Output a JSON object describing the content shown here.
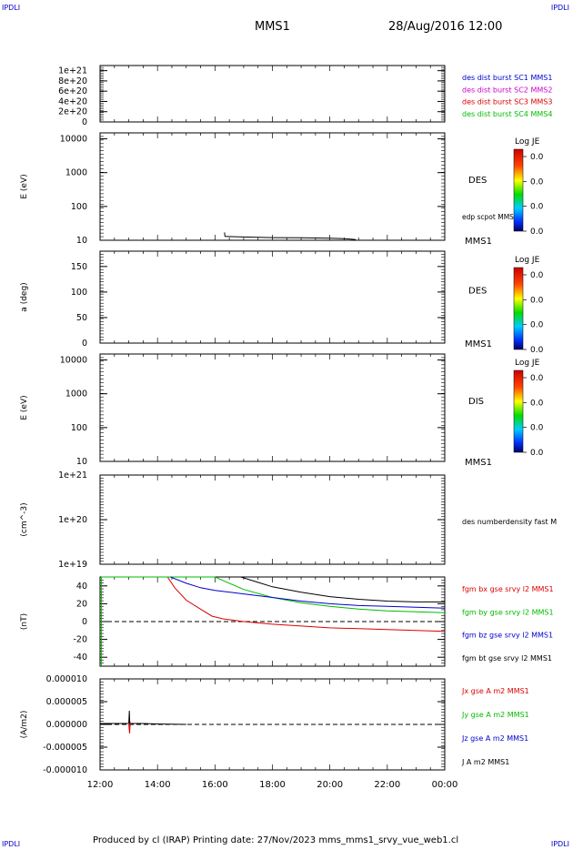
{
  "corner_label": "IPDLI",
  "header": {
    "spacecraft": "MMS1",
    "datetime": "28/Aug/2016 12:00"
  },
  "footer": {
    "text": "Produced by cl (IRAP)   Printing date: 27/Nov/2023   mms_mms1_srvy_vue_web1.cl"
  },
  "colors": {
    "blue": "#0000cc",
    "magenta": "#cc00cc",
    "red": "#dd0000",
    "green": "#00bb00",
    "black": "#000000"
  },
  "chart_data": [
    {
      "type": "line",
      "title": "",
      "ylabel": "",
      "yticks": [
        "1e+21",
        "8e+20",
        "6e+20",
        "4e+20",
        "2e+20",
        "0"
      ],
      "ylim": [
        0,
        1.1e+21
      ],
      "reference_line": 0,
      "legend": [
        {
          "label": "des dist burst SC1 MMS1",
          "color": "#0000cc"
        },
        {
          "label": "des dist burst SC2 MMS2",
          "color": "#cc00cc"
        },
        {
          "label": "des dist burst SC3 MMS3",
          "color": "#dd0000"
        },
        {
          "label": "des dist burst SC4 MMS4",
          "color": "#00bb00"
        }
      ],
      "series": []
    },
    {
      "type": "line",
      "ylabel": "E (eV)",
      "yscale": "log",
      "yticks": [
        "10000",
        "1000",
        "100",
        "10"
      ],
      "ylim": [
        10,
        15000
      ],
      "instrument": "DES",
      "probe": "MMS1",
      "colorbar": {
        "title": "Log JE",
        "ticks": [
          "0.0",
          "0.0",
          "0.0",
          "0.0"
        ]
      },
      "series": [
        {
          "name": "edp scpot MMS1",
          "x": [
            16.33,
            16.35,
            17.0,
            18.0,
            19.0,
            20.0,
            20.5,
            20.9
          ],
          "y": [
            17,
            13,
            12.5,
            12,
            11.8,
            11.5,
            11.2,
            10.5
          ]
        }
      ]
    },
    {
      "type": "heatmap",
      "ylabel": "a (deg)",
      "yticks": [
        "150",
        "100",
        "50",
        "0"
      ],
      "ylim": [
        0,
        180
      ],
      "instrument": "DES",
      "probe": "MMS1",
      "colorbar": {
        "title": "Log JE",
        "ticks": [
          "0.0",
          "0.0",
          "0.0",
          "0.0"
        ]
      }
    },
    {
      "type": "heatmap",
      "ylabel": "E (eV)",
      "yscale": "log",
      "yticks": [
        "10000",
        "1000",
        "100",
        "10"
      ],
      "ylim": [
        10,
        15000
      ],
      "instrument": "DIS",
      "probe": "MMS1",
      "colorbar": {
        "title": "Log JE",
        "ticks": [
          "0.0",
          "0.0",
          "0.0",
          "0.0"
        ]
      }
    },
    {
      "type": "line",
      "ylabel": "(cm^-3)",
      "yscale": "log",
      "yticks": [
        "1e+21",
        "1e+20",
        "1e+19"
      ],
      "ylim": [
        1e+19,
        1e+21
      ],
      "legend": [
        {
          "label": "des numberdensity fast M",
          "color": "#000000"
        }
      ],
      "series": []
    },
    {
      "type": "line",
      "ylabel": "(nT)",
      "yticks": [
        "40",
        "20",
        "0",
        "-20",
        "-40"
      ],
      "ylim": [
        -50,
        50
      ],
      "reference_line": 0,
      "legend": [
        {
          "label": "fgm bx gse srvy l2 MMS1",
          "color": "#dd0000"
        },
        {
          "label": "fgm by gse srvy l2 MMS1",
          "color": "#00bb00"
        },
        {
          "label": "fgm bz gse srvy l2 MMS1",
          "color": "#0000cc"
        },
        {
          "label": "fgm bt gse srvy l2 MMS1",
          "color": "#000000"
        }
      ],
      "series": [
        {
          "name": "fgm bx gse srvy l2 MMS1",
          "color": "#dd0000",
          "x": [
            14.35,
            14.6,
            15.0,
            15.5,
            15.9,
            16.3,
            17.0,
            18.0,
            19.0,
            20.0,
            21.0,
            22.0,
            23.0,
            24.0
          ],
          "y": [
            50,
            38,
            24,
            14,
            6,
            3,
            0,
            -3,
            -5,
            -7,
            -8,
            -9,
            -10,
            -11
          ]
        },
        {
          "name": "fgm by gse srvy l2 MMS1",
          "color": "#00bb00",
          "x": [
            12.05,
            12.05,
            12.06,
            16.0,
            16.5,
            17.0,
            18.0,
            19.0,
            20.0,
            21.0,
            22.0,
            23.0,
            24.0
          ],
          "y": [
            -50,
            50,
            50,
            50,
            43,
            36,
            27,
            21,
            17,
            14,
            12,
            11,
            10
          ]
        },
        {
          "name": "fgm bz gse srvy l2 MMS1",
          "color": "#0000cc",
          "x": [
            14.45,
            15.0,
            15.5,
            16.0,
            17.0,
            18.0,
            19.0,
            20.0,
            21.0,
            22.0,
            23.0,
            24.0
          ],
          "y": [
            50,
            43,
            38,
            35,
            31,
            27,
            23,
            20,
            18,
            17,
            16,
            15
          ]
        },
        {
          "name": "fgm bt gse srvy l2 MMS1",
          "color": "#000000",
          "x": [
            16.9,
            17.5,
            18.0,
            18.5,
            19.0,
            20.0,
            21.0,
            22.0,
            23.0,
            24.0
          ],
          "y": [
            50,
            44,
            39,
            36,
            33,
            28,
            25,
            23,
            22,
            22
          ]
        }
      ]
    },
    {
      "type": "line",
      "ylabel": "(A/m2)",
      "yticks": [
        "0.000010",
        "0.000005",
        "0.000000",
        "-0.000005",
        "-0.000010"
      ],
      "ylim": [
        -1e-05,
        1e-05
      ],
      "reference_line": 0,
      "legend": [
        {
          "label": "Jx gse A m2 MMS1",
          "color": "#dd0000"
        },
        {
          "label": "Jy gse A m2 MMS1",
          "color": "#00bb00"
        },
        {
          "label": "Jz gse A m2 MMS1",
          "color": "#0000cc"
        },
        {
          "label": "J A m2 MMS1",
          "color": "#000000"
        }
      ],
      "series": [
        {
          "name": "J A m2 MMS1",
          "color": "#000000",
          "x": [
            12.0,
            12.5,
            13.0,
            13.02,
            13.04,
            13.06,
            13.5,
            14.0,
            15.0
          ],
          "y": [
            2e-07,
            2e-07,
            2e-07,
            3e-06,
            -5e-07,
            2e-07,
            2e-07,
            1e-07,
            0.0
          ]
        },
        {
          "name": "Jx gse A m2 MMS1",
          "color": "#dd0000",
          "x": [
            13.0,
            13.03,
            13.05,
            13.08
          ],
          "y": [
            0.0,
            -2e-06,
            5e-07,
            0.0
          ]
        }
      ]
    }
  ],
  "time_axis": {
    "labels": [
      "12:00",
      "14:00",
      "16:00",
      "18:00",
      "20:00",
      "22:00",
      "00:00"
    ],
    "values": [
      12,
      14,
      16,
      18,
      20,
      22,
      24
    ],
    "range": [
      12,
      24
    ]
  }
}
